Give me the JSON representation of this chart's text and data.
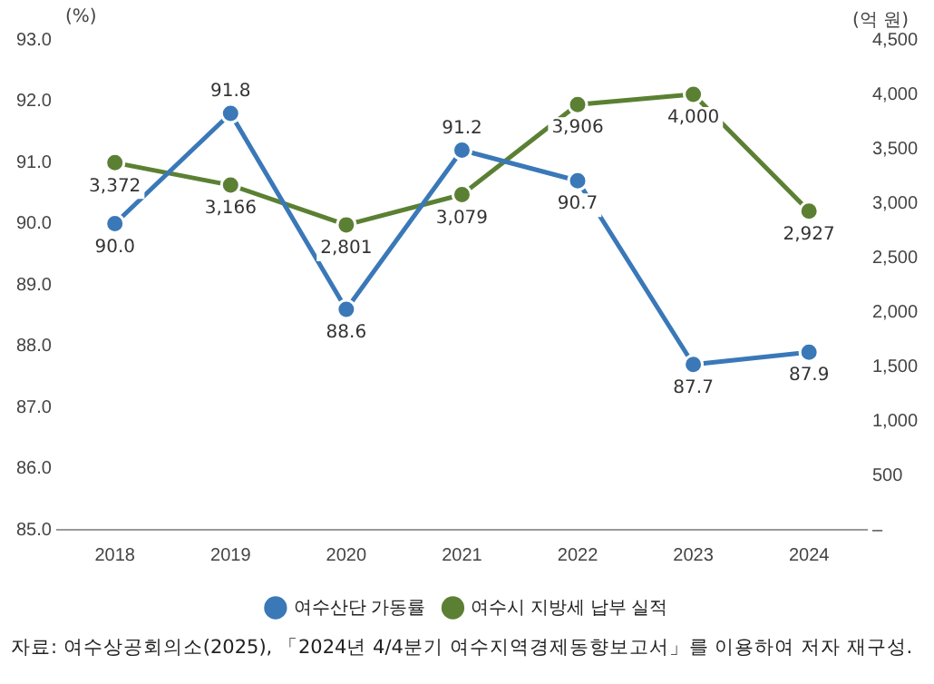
{
  "chart_data": {
    "type": "line",
    "categories": [
      "2018",
      "2019",
      "2020",
      "2021",
      "2022",
      "2023",
      "2024"
    ],
    "ylabel": "(%)",
    "y2label": "(억 원)",
    "ylim": [
      85,
      93
    ],
    "yticks": [
      {
        "value": 85,
        "label": "85.0"
      },
      {
        "value": 86,
        "label": "86.0"
      },
      {
        "value": 87,
        "label": "87.0"
      },
      {
        "value": 88,
        "label": "88.0"
      },
      {
        "value": 89,
        "label": "89.0"
      },
      {
        "value": 90,
        "label": "90.0"
      },
      {
        "value": 91,
        "label": "91.0"
      },
      {
        "value": 92,
        "label": "92.0"
      },
      {
        "value": 93,
        "label": "93.0"
      }
    ],
    "y2lim": [
      0,
      4500
    ],
    "y2ticks": [
      {
        "value": 0,
        "label": "–"
      },
      500,
      {
        "value": 1000,
        "label": "1,000"
      },
      {
        "value": 1500,
        "label": "1,500"
      },
      {
        "value": 2000,
        "label": "2,000"
      },
      {
        "value": 2500,
        "label": "2,500"
      },
      {
        "value": 3000,
        "label": "3,000"
      },
      {
        "value": 3500,
        "label": "3,500"
      },
      {
        "value": 4000,
        "label": "4,000"
      },
      {
        "value": 4500,
        "label": "4,500"
      }
    ],
    "series": [
      {
        "name": "여수산단 가동률",
        "color": "#3a78b8",
        "values": [
          90.0,
          91.8,
          88.6,
          91.2,
          90.7,
          87.7,
          87.9
        ],
        "value_labels": [
          "90.0",
          "91.8",
          "88.6",
          "91.2",
          "90.7",
          "87.7",
          "87.9"
        ]
      },
      {
        "name": "여수시 지방세 납부 실적",
        "color": "#5b8033",
        "axis": "y2",
        "values": [
          3372,
          3166,
          2801,
          3079,
          3906,
          4000,
          2927
        ],
        "value_labels": [
          "3,372",
          "3,166",
          "2,801",
          "3,079",
          "3,906",
          "4,000",
          "2,927"
        ]
      }
    ],
    "marker": "circle",
    "line_style": "solid",
    "grid": false,
    "legend": "bottom",
    "annotations": [
      "자료: 여수상공회의소(2025), 「2024년 4/4분기 여수지역경제동향보고서」를 이용하여 저자 재구성."
    ]
  }
}
